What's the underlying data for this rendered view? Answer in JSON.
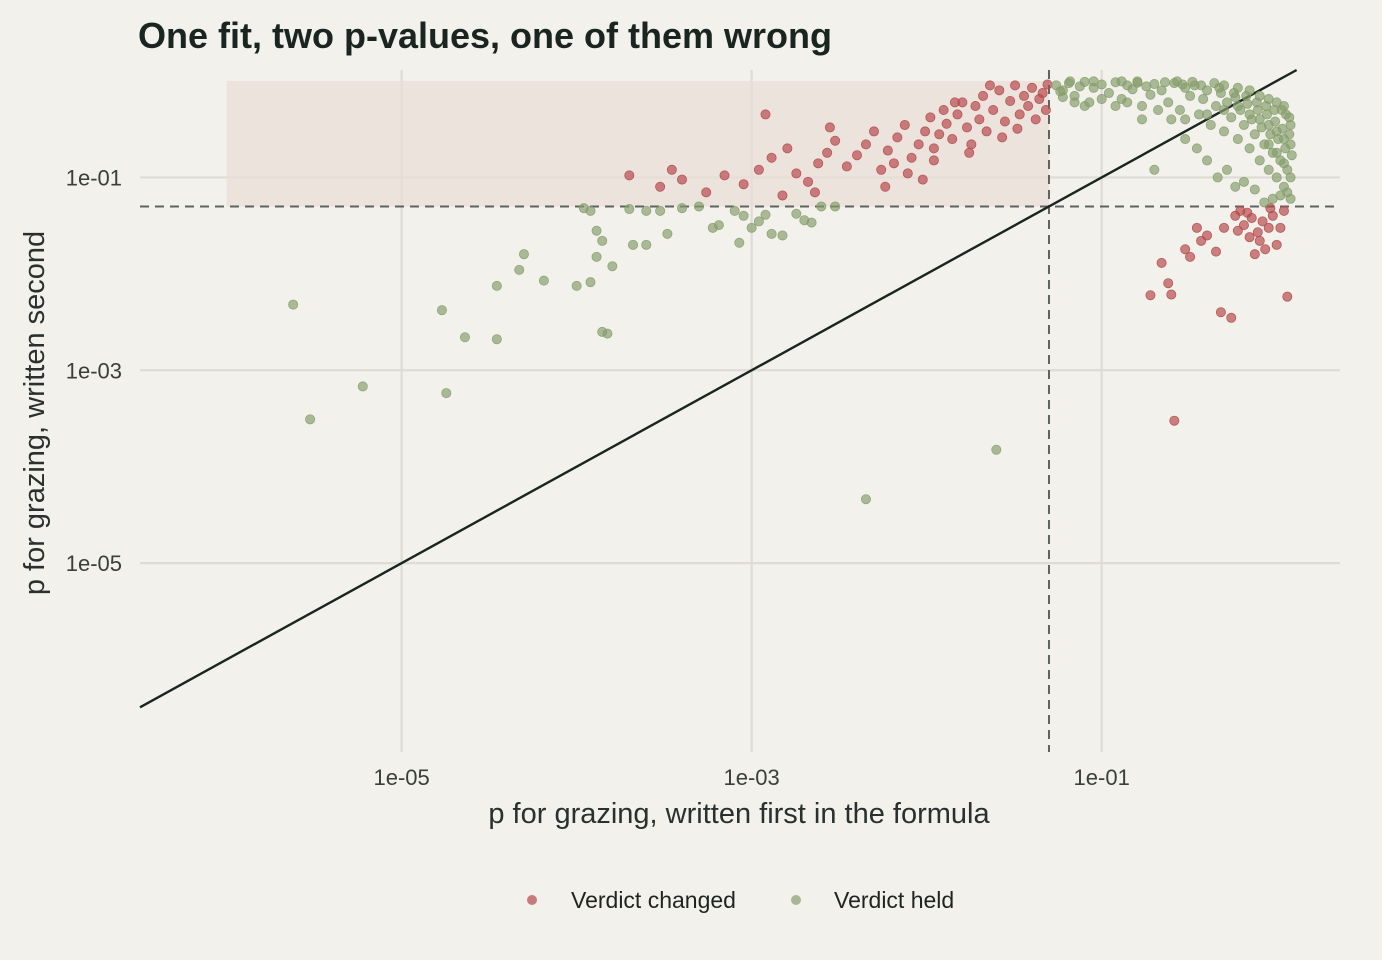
{
  "chart_data": {
    "type": "scatter",
    "title": "One fit, two p-values, one of them wrong",
    "xlabel": "p for grazing, written first in the formula",
    "ylabel": "p for grazing, written second",
    "x_scale": "log10",
    "y_scale": "log10",
    "xlim": [
      3.2e-07,
      2.3
    ],
    "ylim": [
      1.1e-07,
      1.3
    ],
    "x_ticks": [
      1e-05,
      0.001,
      0.1
    ],
    "x_tick_labels": [
      "1e-05",
      "1e-03",
      "1e-01"
    ],
    "y_ticks": [
      1e-05,
      0.001,
      0.1
    ],
    "y_tick_labels": [
      "1e-05",
      "1e-03",
      "1e-01"
    ],
    "grid": true,
    "threshold_lines": {
      "x": 0.05,
      "y": 0.05,
      "style": "dashed"
    },
    "reference_line": "y = x",
    "shaded_region": {
      "x": [
        1e-06,
        0.05
      ],
      "y": [
        0.05,
        1
      ]
    },
    "legend_position": "bottom",
    "colors": {
      "changed": "#b5484a",
      "held": "#869e6c",
      "shade": "#e8ddd7",
      "line": "#1a2420",
      "grid": "#dedcd4",
      "background": "#f2f1eb"
    },
    "series": [
      {
        "name": "Verdict changed",
        "points": [
          [
            0.0002,
            0.105
          ],
          [
            0.0003,
            0.08
          ],
          [
            0.0004,
            0.095
          ],
          [
            0.00035,
            0.12
          ],
          [
            0.00055,
            0.07
          ],
          [
            0.0007,
            0.105
          ],
          [
            0.0009,
            0.085
          ],
          [
            0.0011,
            0.12
          ],
          [
            0.0013,
            0.16
          ],
          [
            0.0016,
            0.2
          ],
          [
            0.0018,
            0.11
          ],
          [
            0.0021,
            0.09
          ],
          [
            0.0024,
            0.14
          ],
          [
            0.0027,
            0.18
          ],
          [
            0.003,
            0.24
          ],
          [
            0.0035,
            0.13
          ],
          [
            0.004,
            0.17
          ],
          [
            0.0045,
            0.22
          ],
          [
            0.005,
            0.3
          ],
          [
            0.0055,
            0.12
          ],
          [
            0.006,
            0.19
          ],
          [
            0.0068,
            0.26
          ],
          [
            0.0075,
            0.35
          ],
          [
            0.0082,
            0.16
          ],
          [
            0.009,
            0.22
          ],
          [
            0.0098,
            0.3
          ],
          [
            0.0105,
            0.42
          ],
          [
            0.011,
            0.2
          ],
          [
            0.0118,
            0.28
          ],
          [
            0.0125,
            0.5
          ],
          [
            0.013,
            0.36
          ],
          [
            0.014,
            0.25
          ],
          [
            0.015,
            0.45
          ],
          [
            0.016,
            0.6
          ],
          [
            0.017,
            0.33
          ],
          [
            0.018,
            0.22
          ],
          [
            0.019,
            0.55
          ],
          [
            0.02,
            0.4
          ],
          [
            0.021,
            0.7
          ],
          [
            0.022,
            0.3
          ],
          [
            0.024,
            0.5
          ],
          [
            0.026,
            0.8
          ],
          [
            0.028,
            0.38
          ],
          [
            0.03,
            0.62
          ],
          [
            0.032,
            0.9
          ],
          [
            0.034,
            0.45
          ],
          [
            0.036,
            0.7
          ],
          [
            0.038,
            0.55
          ],
          [
            0.04,
            0.85
          ],
          [
            0.042,
            0.4
          ],
          [
            0.044,
            0.65
          ],
          [
            0.046,
            0.75
          ],
          [
            0.048,
            0.5
          ],
          [
            0.049,
            0.92
          ],
          [
            0.0012,
            0.45
          ],
          [
            0.0028,
            0.33
          ],
          [
            0.0065,
            0.14
          ],
          [
            0.0095,
            0.095
          ],
          [
            0.011,
            0.15
          ],
          [
            0.0145,
            0.6
          ],
          [
            0.0175,
            0.18
          ],
          [
            0.023,
            0.9
          ],
          [
            0.027,
            0.26
          ],
          [
            0.033,
            0.32
          ],
          [
            0.0015,
            0.065
          ],
          [
            0.0023,
            0.07
          ],
          [
            0.0058,
            0.08
          ],
          [
            0.0078,
            0.11
          ],
          [
            0.19,
            0.006
          ],
          [
            0.22,
            0.013
          ],
          [
            0.24,
            0.008
          ],
          [
            0.25,
            0.0061
          ],
          [
            0.26,
            0.0003
          ],
          [
            0.3,
            0.018
          ],
          [
            0.32,
            0.015
          ],
          [
            0.35,
            0.03
          ],
          [
            0.37,
            0.022
          ],
          [
            0.4,
            0.025
          ],
          [
            0.45,
            0.017
          ],
          [
            0.48,
            0.004
          ],
          [
            0.5,
            0.03
          ],
          [
            0.55,
            0.0035
          ],
          [
            0.6,
            0.028
          ],
          [
            0.62,
            0.045
          ],
          [
            0.65,
            0.032
          ],
          [
            0.7,
            0.024
          ],
          [
            0.72,
            0.038
          ],
          [
            0.75,
            0.016
          ],
          [
            0.78,
            0.027
          ],
          [
            0.8,
            0.022
          ],
          [
            0.83,
            0.035
          ],
          [
            0.86,
            0.018
          ],
          [
            0.9,
            0.03
          ],
          [
            0.95,
            0.04
          ],
          [
            1.0,
            0.02
          ],
          [
            1.05,
            0.03
          ],
          [
            1.1,
            0.045
          ],
          [
            1.15,
            0.0058
          ],
          [
            0.68,
            0.043
          ],
          [
            0.58,
            0.04
          ],
          [
            0.92,
            0.048
          ]
        ]
      },
      {
        "name": "Verdict held",
        "points": [
          [
            2.4e-06,
            0.0048
          ],
          [
            3e-06,
            0.00031
          ],
          [
            6e-06,
            0.00068
          ],
          [
            1.7e-05,
            0.0042
          ],
          [
            1.8e-05,
            0.00058
          ],
          [
            2.3e-05,
            0.0022
          ],
          [
            3.5e-05,
            0.0021
          ],
          [
            3.5e-05,
            0.0075
          ],
          [
            4.7e-05,
            0.011
          ],
          [
            5e-05,
            0.016
          ],
          [
            6.5e-05,
            0.0085
          ],
          [
            0.0001,
            0.0075
          ],
          [
            0.00011,
            0.048
          ],
          [
            0.00012,
            0.045
          ],
          [
            0.00012,
            0.0082
          ],
          [
            0.00013,
            0.015
          ],
          [
            0.00014,
            0.022
          ],
          [
            0.00013,
            0.028
          ],
          [
            0.00014,
            0.0025
          ],
          [
            0.00015,
            0.0024
          ],
          [
            0.00016,
            0.012
          ],
          [
            0.0002,
            0.047
          ],
          [
            0.00021,
            0.02
          ],
          [
            0.00025,
            0.02
          ],
          [
            0.00025,
            0.045
          ],
          [
            0.0003,
            0.045
          ],
          [
            0.00033,
            0.026
          ],
          [
            0.0004,
            0.048
          ],
          [
            0.0005,
            0.05
          ],
          [
            0.0006,
            0.03
          ],
          [
            0.00065,
            0.032
          ],
          [
            0.0008,
            0.045
          ],
          [
            0.00085,
            0.021
          ],
          [
            0.0009,
            0.04
          ],
          [
            0.001,
            0.03
          ],
          [
            0.0011,
            0.035
          ],
          [
            0.0012,
            0.041
          ],
          [
            0.0013,
            0.026
          ],
          [
            0.0015,
            0.025
          ],
          [
            0.0018,
            0.042
          ],
          [
            0.002,
            0.036
          ],
          [
            0.0022,
            0.034
          ],
          [
            0.0025,
            0.05
          ],
          [
            0.003,
            0.05
          ],
          [
            0.0045,
            4.6e-05
          ],
          [
            0.025,
            0.00015
          ],
          [
            0.055,
            0.9
          ],
          [
            0.06,
            0.8
          ],
          [
            0.065,
            0.95
          ],
          [
            0.07,
            0.7
          ],
          [
            0.075,
            0.88
          ],
          [
            0.08,
            0.98
          ],
          [
            0.085,
            0.6
          ],
          [
            0.09,
            0.85
          ],
          [
            0.1,
            0.92
          ],
          [
            0.11,
            0.75
          ],
          [
            0.12,
            0.97
          ],
          [
            0.13,
            0.65
          ],
          [
            0.14,
            0.9
          ],
          [
            0.15,
            0.82
          ],
          [
            0.16,
            0.96
          ],
          [
            0.17,
            0.55
          ],
          [
            0.18,
            0.88
          ],
          [
            0.19,
            0.72
          ],
          [
            0.2,
            0.93
          ],
          [
            0.22,
            0.8
          ],
          [
            0.24,
            0.6
          ],
          [
            0.26,
            0.95
          ],
          [
            0.28,
            0.5
          ],
          [
            0.3,
            0.85
          ],
          [
            0.32,
            0.7
          ],
          [
            0.34,
            0.9
          ],
          [
            0.36,
            0.45
          ],
          [
            0.38,
            0.65
          ],
          [
            0.4,
            0.8
          ],
          [
            0.42,
            0.35
          ],
          [
            0.45,
            0.55
          ],
          [
            0.48,
            0.75
          ],
          [
            0.5,
            0.3
          ],
          [
            0.52,
            0.6
          ],
          [
            0.55,
            0.42
          ],
          [
            0.58,
            0.68
          ],
          [
            0.6,
            0.25
          ],
          [
            0.62,
            0.5
          ],
          [
            0.65,
            0.35
          ],
          [
            0.68,
            0.58
          ],
          [
            0.7,
            0.2
          ],
          [
            0.72,
            0.4
          ],
          [
            0.75,
            0.28
          ],
          [
            0.78,
            0.5
          ],
          [
            0.8,
            0.15
          ],
          [
            0.82,
            0.33
          ],
          [
            0.85,
            0.22
          ],
          [
            0.88,
            0.45
          ],
          [
            0.9,
            0.12
          ],
          [
            0.92,
            0.28
          ],
          [
            0.95,
            0.18
          ],
          [
            0.98,
            0.38
          ],
          [
            1.0,
            0.1
          ],
          [
            1.02,
            0.25
          ],
          [
            1.05,
            0.15
          ],
          [
            1.08,
            0.32
          ],
          [
            1.1,
            0.08
          ],
          [
            1.12,
            0.2
          ],
          [
            1.15,
            0.12
          ],
          [
            1.18,
            0.28
          ],
          [
            1.2,
            0.06
          ],
          [
            1.22,
            0.17
          ],
          [
            1.15,
            0.07
          ],
          [
            1.05,
            0.065
          ],
          [
            0.95,
            0.06
          ],
          [
            0.85,
            0.055
          ],
          [
            0.75,
            0.075
          ],
          [
            0.65,
            0.09
          ],
          [
            0.58,
            0.08
          ],
          [
            0.52,
            0.12
          ],
          [
            0.46,
            0.1
          ],
          [
            0.4,
            0.15
          ],
          [
            0.35,
            0.2
          ],
          [
            0.3,
            0.25
          ],
          [
            0.25,
            0.4
          ],
          [
            0.21,
            0.5
          ],
          [
            0.17,
            0.4
          ],
          [
            0.14,
            0.6
          ],
          [
            0.12,
            0.55
          ],
          [
            0.1,
            0.65
          ],
          [
            0.08,
            0.55
          ],
          [
            0.07,
            0.6
          ],
          [
            0.06,
            0.68
          ],
          [
            0.058,
            0.78
          ],
          [
            1.18,
            0.42
          ],
          [
            1.1,
            0.55
          ],
          [
            1.0,
            0.6
          ],
          [
            0.9,
            0.65
          ],
          [
            0.8,
            0.7
          ],
          [
            0.7,
            0.8
          ],
          [
            0.6,
            0.85
          ],
          [
            0.5,
            0.9
          ],
          [
            0.44,
            0.95
          ],
          [
            0.33,
            0.98
          ],
          [
            0.27,
            0.99
          ],
          [
            0.23,
            0.97
          ],
          [
            0.16,
            0.99
          ],
          [
            0.13,
            0.99
          ],
          [
            0.09,
            0.99
          ],
          [
            0.066,
            0.99
          ],
          [
            1.2,
            0.35
          ],
          [
            1.13,
            0.45
          ],
          [
            1.07,
            0.5
          ],
          [
            0.97,
            0.5
          ],
          [
            0.87,
            0.55
          ],
          [
            0.77,
            0.6
          ],
          [
            0.67,
            0.7
          ],
          [
            0.57,
            0.75
          ],
          [
            0.47,
            0.85
          ],
          [
            0.37,
            0.9
          ],
          [
            0.29,
            0.92
          ],
          [
            0.2,
            0.12
          ],
          [
            0.3,
            0.4
          ],
          [
            0.4,
            0.45
          ],
          [
            0.5,
            0.5
          ],
          [
            0.6,
            0.55
          ],
          [
            0.7,
            0.45
          ],
          [
            0.8,
            0.4
          ],
          [
            0.9,
            0.35
          ],
          [
            1.0,
            0.3
          ],
          [
            1.1,
            0.25
          ],
          [
            1.2,
            0.22
          ],
          [
            1.2,
            0.1
          ],
          [
            1.1,
            0.14
          ],
          [
            1.0,
            0.18
          ],
          [
            0.9,
            0.22
          ]
        ]
      }
    ]
  }
}
